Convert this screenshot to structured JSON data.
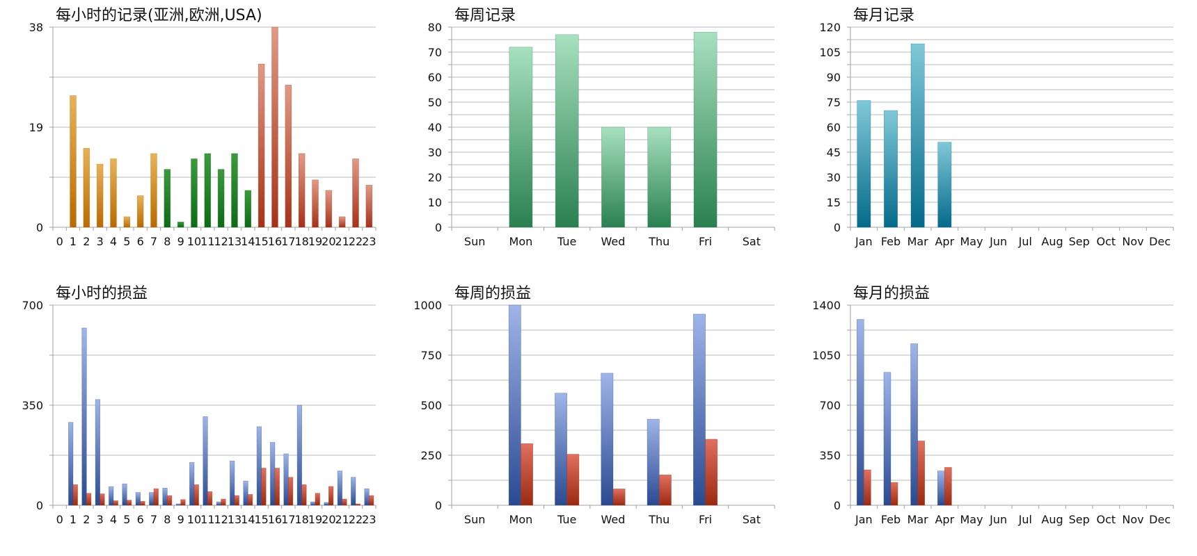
{
  "chart_data": [
    {
      "id": "hourly-records",
      "type": "bar",
      "title": "每小时的记录(亚洲,欧洲,USA)",
      "categories": [
        "0",
        "1",
        "2",
        "3",
        "4",
        "5",
        "6",
        "7",
        "8",
        "9",
        "10",
        "11",
        "12",
        "13",
        "14",
        "15",
        "16",
        "17",
        "18",
        "19",
        "20",
        "21",
        "22",
        "23"
      ],
      "values": [
        0,
        25,
        15,
        12,
        13,
        2,
        6,
        14,
        11,
        1,
        13,
        14,
        11,
        14,
        7,
        31,
        38,
        27,
        14,
        9,
        7,
        2,
        13,
        8
      ],
      "region_groups": [
        {
          "name": "亚洲",
          "from": 0,
          "to": 7,
          "colors": [
            "#e8b25a",
            "#b86a00"
          ]
        },
        {
          "name": "欧洲",
          "from": 8,
          "to": 14,
          "colors": [
            "#3c9a3c",
            "#0e6a16"
          ]
        },
        {
          "name": "USA",
          "from": 15,
          "to": 23,
          "colors": [
            "#e09a86",
            "#a53218"
          ]
        }
      ],
      "ylim": [
        0,
        38
      ],
      "yticks": [
        0,
        19,
        38
      ],
      "grid": true
    },
    {
      "id": "weekly-records",
      "type": "bar",
      "title": "每周记录",
      "categories": [
        "Sun",
        "Mon",
        "Tue",
        "Wed",
        "Thu",
        "Fri",
        "Sat"
      ],
      "values": [
        0,
        72,
        77,
        40,
        40,
        78,
        0
      ],
      "colors": [
        "#a8e0c0",
        "#2a8050"
      ],
      "ylim": [
        0,
        80
      ],
      "yticks": [
        0,
        10,
        20,
        30,
        40,
        50,
        60,
        70,
        80
      ],
      "grid": true
    },
    {
      "id": "monthly-records",
      "type": "bar",
      "title": "每月记录",
      "categories": [
        "Jan",
        "Feb",
        "Mar",
        "Apr",
        "May",
        "Jun",
        "Jul",
        "Aug",
        "Sep",
        "Oct",
        "Nov",
        "Dec"
      ],
      "values": [
        76,
        70,
        110,
        51,
        0,
        0,
        0,
        0,
        0,
        0,
        0,
        0
      ],
      "colors": [
        "#80c8d8",
        "#046a8a"
      ],
      "ylim": [
        0,
        120
      ],
      "yticks": [
        0,
        15,
        30,
        45,
        60,
        75,
        90,
        105,
        120
      ],
      "grid": true
    },
    {
      "id": "hourly-pnl",
      "type": "bar",
      "title": "每小时的损益",
      "categories": [
        "0",
        "1",
        "2",
        "3",
        "4",
        "5",
        "6",
        "7",
        "8",
        "9",
        "10",
        "11",
        "12",
        "13",
        "14",
        "15",
        "16",
        "17",
        "18",
        "19",
        "20",
        "21",
        "22",
        "23"
      ],
      "series": [
        {
          "values": [
            0,
            290,
            620,
            370,
            65,
            75,
            45,
            45,
            60,
            5,
            150,
            310,
            12,
            155,
            85,
            275,
            220,
            180,
            350,
            12,
            10,
            120,
            98,
            58
          ],
          "colors": [
            "#9fb4e8",
            "#2a4a90"
          ]
        },
        {
          "values": [
            0,
            72,
            42,
            40,
            16,
            18,
            14,
            58,
            34,
            20,
            72,
            48,
            22,
            34,
            38,
            130,
            130,
            98,
            72,
            42,
            66,
            22,
            5,
            34
          ],
          "colors": [
            "#e07060",
            "#9a2a10"
          ]
        }
      ],
      "ylim": [
        0,
        700
      ],
      "yticks": [
        0,
        350,
        700
      ],
      "grid": true
    },
    {
      "id": "weekly-pnl",
      "type": "bar",
      "title": "每周的损益",
      "categories": [
        "Sun",
        "Mon",
        "Tue",
        "Wed",
        "Thu",
        "Fri",
        "Sat"
      ],
      "series": [
        {
          "values": [
            0,
            1000,
            560,
            660,
            430,
            955,
            0
          ],
          "colors": [
            "#9fb4e8",
            "#2a4a90"
          ]
        },
        {
          "values": [
            0,
            308,
            255,
            82,
            152,
            330,
            0
          ],
          "colors": [
            "#e07060",
            "#9a2a10"
          ]
        }
      ],
      "ylim": [
        0,
        1000
      ],
      "yticks": [
        0,
        250,
        500,
        750,
        1000
      ],
      "grid": true
    },
    {
      "id": "monthly-pnl",
      "type": "bar",
      "title": "每月的损益",
      "categories": [
        "Jan",
        "Feb",
        "Mar",
        "Apr",
        "May",
        "Jun",
        "Jul",
        "Aug",
        "Sep",
        "Oct",
        "Nov",
        "Dec"
      ],
      "series": [
        {
          "values": [
            1300,
            930,
            1130,
            240,
            0,
            0,
            0,
            0,
            0,
            0,
            0,
            0
          ],
          "colors": [
            "#9fb4e8",
            "#2a4a90"
          ]
        },
        {
          "values": [
            248,
            160,
            450,
            265,
            0,
            0,
            0,
            0,
            0,
            0,
            0,
            0
          ],
          "colors": [
            "#e07060",
            "#9a2a10"
          ]
        }
      ],
      "ylim": [
        0,
        1400
      ],
      "yticks": [
        0,
        350,
        700,
        1050,
        1400
      ],
      "grid": true
    }
  ]
}
